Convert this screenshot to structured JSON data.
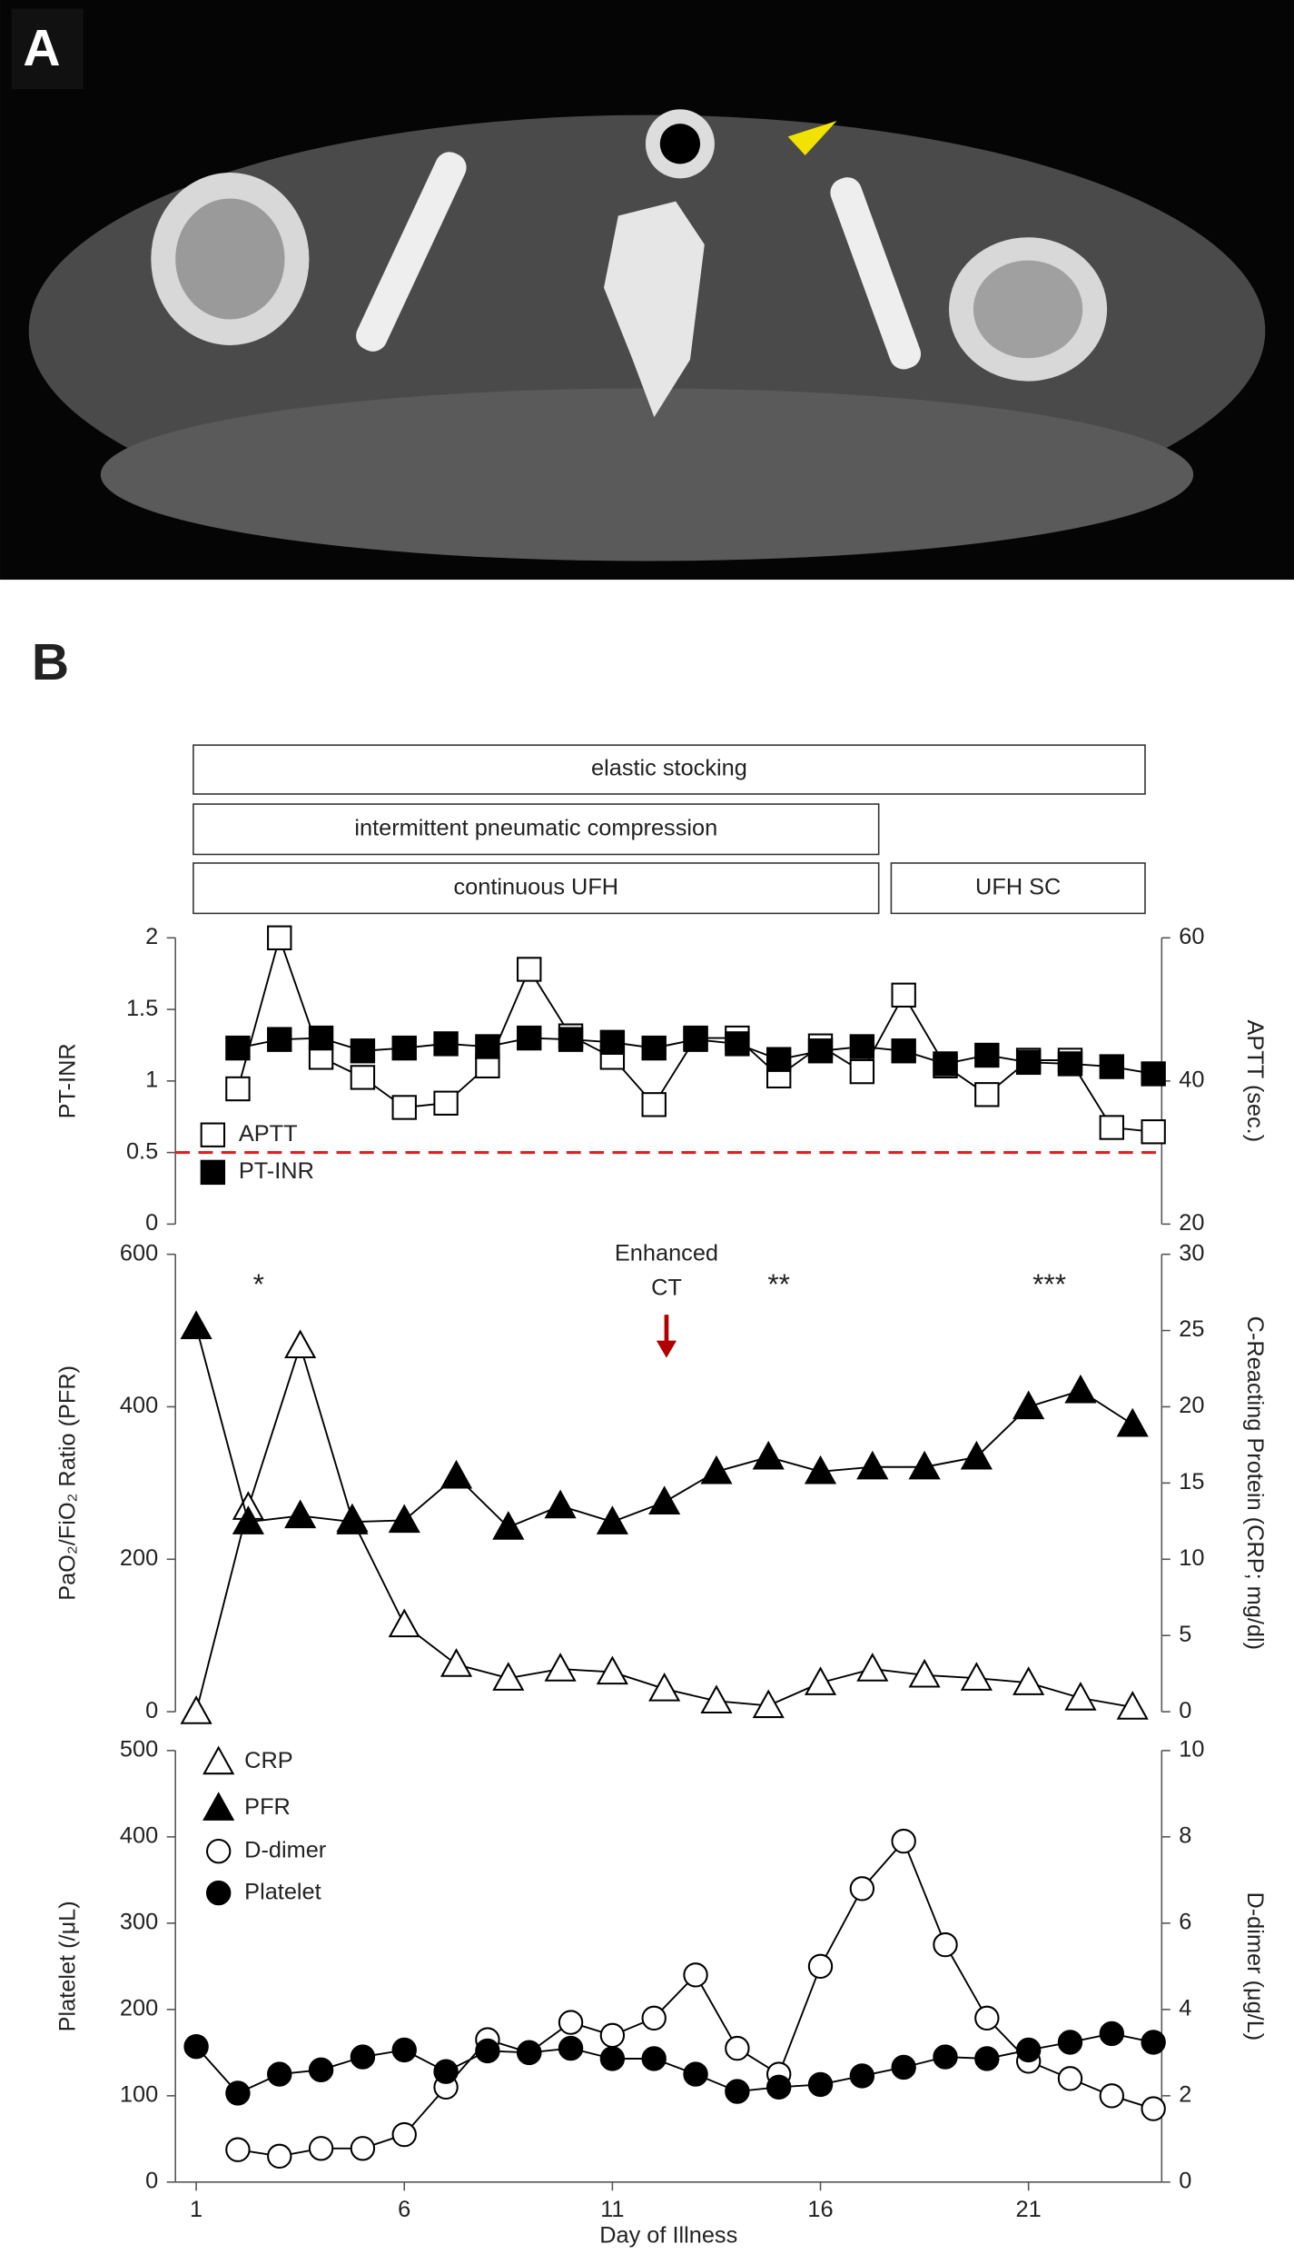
{
  "figure": {
    "panel_labels": [
      "A",
      "B"
    ],
    "treatments": [
      {
        "label": "elastic stocking",
        "start": 0.93,
        "end": 23.8
      },
      {
        "label": "intermittent pneumatic compression",
        "start": 0.93,
        "end": 17.4
      },
      {
        "label": "continuous UFH",
        "start": 0.93,
        "end": 17.4
      },
      {
        "label": "UFH SC",
        "start": 17.7,
        "end": 23.8
      }
    ]
  },
  "chart_data": [
    {
      "type": "line",
      "ylabel": "PT-INR",
      "y2label": "APTT (sec.)",
      "xlim": [
        0.5,
        24.2
      ],
      "ylim": [
        0,
        2
      ],
      "yticks": [
        0,
        0.5,
        1,
        1.5,
        2
      ],
      "y2lim": [
        20,
        60
      ],
      "y2ticks": [
        20,
        40,
        60
      ],
      "hline": 0.5,
      "hline_color": "#e02020",
      "series": [
        {
          "name": "APTT",
          "color": "#000000",
          "marker": "square",
          "filled": false,
          "axis": "y2",
          "x": [
            2,
            3,
            4,
            5,
            6,
            7,
            8,
            9,
            10,
            11,
            12,
            13,
            14,
            15,
            16,
            17,
            18,
            19,
            20,
            21,
            22,
            23,
            24
          ],
          "values": [
            38.9,
            60,
            43.3,
            40.5,
            36.3,
            36.9,
            42.1,
            55.6,
            46.3,
            43.3,
            36.7,
            46,
            46,
            40.7,
            44.9,
            41.3,
            52,
            42.1,
            38.1,
            42.9,
            42.9,
            33.5,
            32.9
          ]
        },
        {
          "name": "PT-INR",
          "color": "#000000",
          "marker": "square",
          "filled": true,
          "x": [
            2,
            3,
            4,
            5,
            6,
            7,
            8,
            9,
            10,
            11,
            12,
            13,
            14,
            15,
            16,
            17,
            18,
            19,
            20,
            21,
            22,
            23,
            24
          ],
          "values": [
            1.23,
            1.29,
            1.3,
            1.21,
            1.23,
            1.26,
            1.24,
            1.3,
            1.29,
            1.27,
            1.23,
            1.29,
            1.26,
            1.15,
            1.21,
            1.24,
            1.21,
            1.12,
            1.18,
            1.13,
            1.12,
            1.1,
            1.05
          ]
        }
      ]
    },
    {
      "type": "line",
      "ylabel": "PaO₂/FiO₂ Ratio (PFR)",
      "y2label": "C-Reacting Protein (CRP; mg/dl)",
      "xlim": [
        0.5,
        24.2
      ],
      "ylim": [
        0,
        600
      ],
      "yticks": [
        0,
        200,
        400,
        600
      ],
      "y2lim": [
        0,
        30
      ],
      "y2ticks": [
        0,
        5,
        10,
        15,
        20,
        25,
        30
      ],
      "annotations": [
        {
          "text": "*",
          "x": 2.5
        },
        {
          "text": "**",
          "x": 15
        },
        {
          "text": "***",
          "x": 21.5
        }
      ],
      "arrow_annotation": {
        "lines": [
          "Enhanced",
          "CT"
        ],
        "x": 12.3,
        "color": "#b00000"
      },
      "series": [
        {
          "name": "CRP",
          "color": "#000000",
          "marker": "triangle",
          "filled": false,
          "axis": "y2",
          "x": [
            1,
            2.25,
            3.5,
            4.75,
            6,
            7.25,
            8.5,
            9.75,
            11,
            12.25,
            13.5,
            14.75,
            16,
            17.25,
            18.5,
            19.75,
            21,
            22.25,
            23.5
          ],
          "values": [
            0,
            13.4,
            24,
            12.6,
            5.7,
            3.1,
            2.2,
            2.8,
            2.6,
            1.5,
            0.7,
            0.4,
            1.9,
            2.8,
            2.4,
            2.2,
            1.9,
            0.9,
            0.3
          ]
        },
        {
          "name": "PFR",
          "color": "#000000",
          "marker": "triangle",
          "filled": true,
          "x": [
            1,
            2.25,
            3.5,
            4.75,
            6,
            7.25,
            8.5,
            9.75,
            11,
            12.25,
            13.5,
            14.75,
            16,
            17.25,
            18.5,
            19.75,
            21,
            22.25,
            23.5
          ],
          "values": [
            505,
            249,
            257,
            249,
            251,
            309,
            242,
            270,
            249,
            275,
            315,
            334,
            315,
            321,
            321,
            334,
            400,
            421,
            377
          ]
        }
      ]
    },
    {
      "type": "line",
      "ylabel": "Platelet (/μL)",
      "y2label": "D-dimer (μg/L)",
      "xlabel": "Day of Illness",
      "xlim": [
        0.5,
        24.2
      ],
      "xticks": [
        1,
        6,
        11,
        16,
        21
      ],
      "ylim": [
        0,
        500
      ],
      "yticks": [
        0,
        100,
        200,
        300,
        400,
        500
      ],
      "y2lim": [
        0,
        10
      ],
      "y2ticks": [
        0,
        2,
        4,
        6,
        8,
        10
      ],
      "series": [
        {
          "name": "D-dimer",
          "color": "#000000",
          "marker": "circle",
          "filled": false,
          "axis": "y2",
          "x": [
            2,
            3,
            4,
            5,
            6,
            7,
            8,
            9,
            10,
            11,
            12,
            13,
            14,
            15,
            16,
            17,
            18,
            19,
            20,
            21,
            22,
            23,
            24
          ],
          "values": [
            0.75,
            0.6,
            0.78,
            0.78,
            1.1,
            2.2,
            3.3,
            3,
            3.7,
            3.4,
            3.8,
            4.8,
            3.1,
            2.5,
            5,
            6.8,
            7.9,
            5.5,
            3.8,
            2.8,
            2.4,
            2,
            1.7
          ]
        },
        {
          "name": "Platelet",
          "color": "#000000",
          "marker": "circle",
          "filled": true,
          "x": [
            1,
            2,
            3,
            4,
            5,
            6,
            7,
            8,
            9,
            10,
            11,
            12,
            13,
            14,
            15,
            16,
            17,
            18,
            19,
            20,
            21,
            22,
            23,
            24
          ],
          "values": [
            157,
            103,
            125,
            130,
            145,
            153,
            128,
            152,
            150,
            155,
            143,
            143,
            125,
            105,
            110,
            113,
            123,
            133,
            145,
            143,
            153,
            162,
            172,
            162
          ]
        }
      ]
    }
  ]
}
